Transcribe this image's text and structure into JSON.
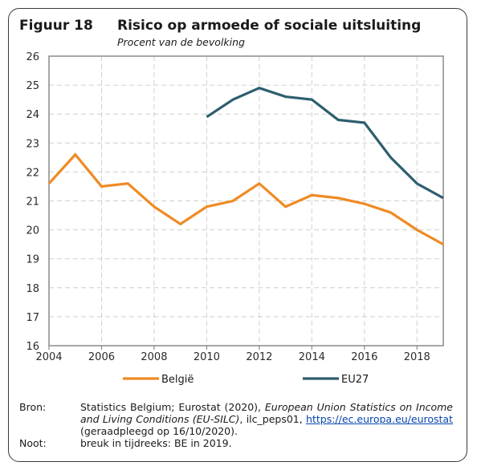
{
  "figure": {
    "label": "Figuur 18",
    "title": "Risico op armoede of sociale uitsluiting",
    "subtitle": "Procent van de bevolking"
  },
  "chart_data": {
    "type": "line",
    "x_ticks": [
      2004,
      2006,
      2008,
      2010,
      2012,
      2014,
      2016,
      2018
    ],
    "xlim": [
      2004,
      2019
    ],
    "ylim": [
      16,
      26
    ],
    "y_ticks": [
      16,
      17,
      18,
      19,
      20,
      21,
      22,
      23,
      24,
      25,
      26
    ],
    "grid": true,
    "legend_position": "bottom",
    "series": [
      {
        "name": "België",
        "color": "#f08a24",
        "x": [
          2004,
          2005,
          2006,
          2007,
          2008,
          2009,
          2010,
          2011,
          2012,
          2013,
          2014,
          2015,
          2016,
          2017,
          2018,
          2019
        ],
        "values": [
          21.6,
          22.6,
          21.5,
          21.6,
          20.8,
          20.2,
          20.8,
          21.0,
          21.6,
          20.8,
          21.2,
          21.1,
          20.9,
          20.6,
          20.0,
          19.5
        ]
      },
      {
        "name": "EU27",
        "color": "#2e5e6e",
        "x": [
          2010,
          2011,
          2012,
          2013,
          2014,
          2015,
          2016,
          2017,
          2018,
          2019
        ],
        "values": [
          23.9,
          24.5,
          24.9,
          24.6,
          24.5,
          23.8,
          23.7,
          22.5,
          21.6,
          21.1
        ]
      }
    ]
  },
  "notes": {
    "source_label": "Bron:",
    "source_part1": "Statistics Belgium; Eurostat (2020), ",
    "source_italic": "European Union Statistics on Income and Living Conditions (EU-SILC)",
    "source_part2": ", ilc_peps01, ",
    "source_link": "https://ec.europa.eu/eurostat",
    "source_part3": " (geraadpleegd op 16/10/2020).",
    "note_label": "Noot:",
    "note_text": "breuk in tijdreeks: BE in 2019."
  }
}
